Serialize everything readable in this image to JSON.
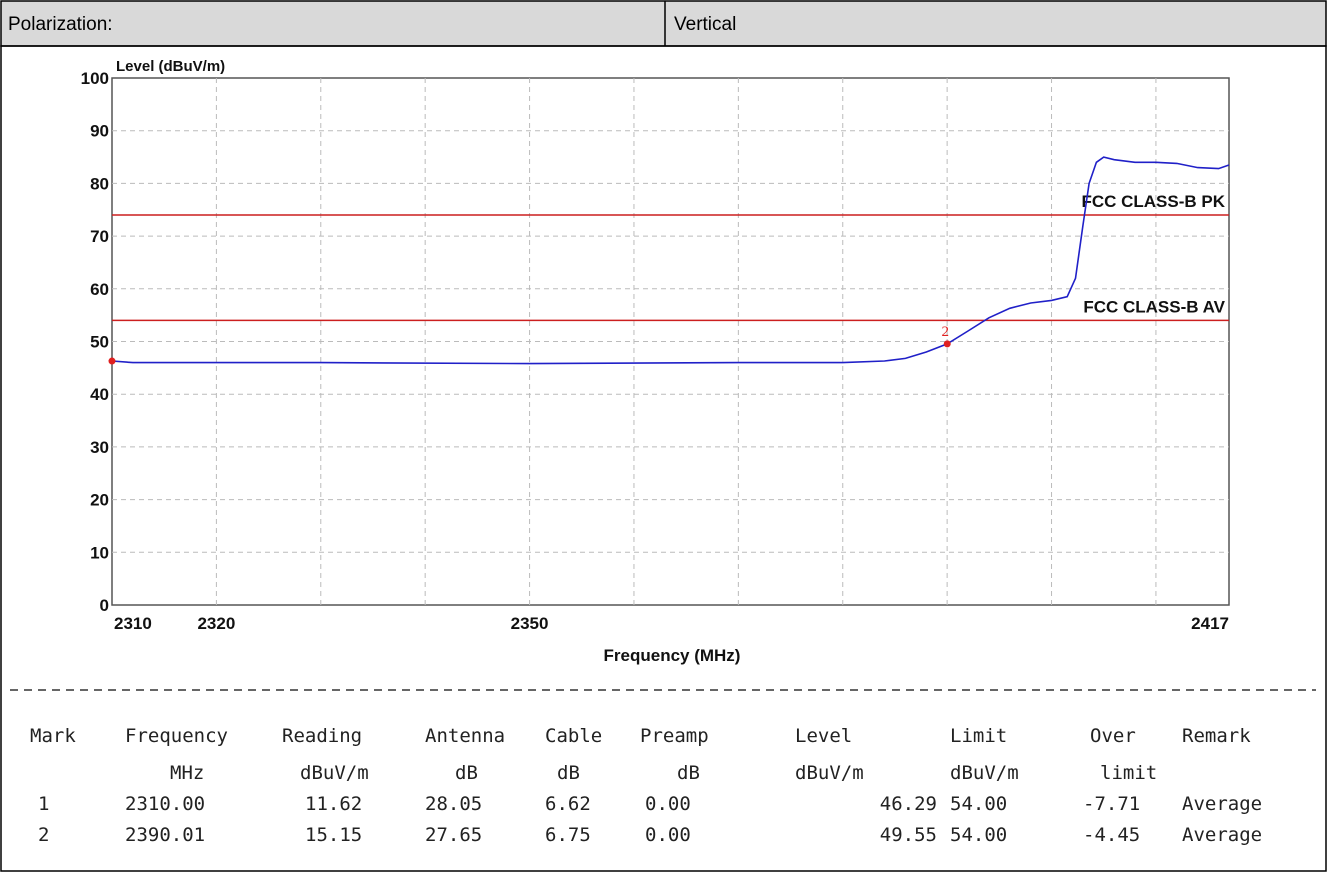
{
  "header": {
    "label": "Polarization:",
    "value": "Vertical"
  },
  "chart_data": {
    "type": "line",
    "ylabel": "Level (dBuV/m)",
    "xlabel": "Frequency (MHz)",
    "xlim": [
      2310,
      2417
    ],
    "xticks": [
      2310,
      2320,
      2350,
      2417
    ],
    "xgrid": [
      2320,
      2330,
      2340,
      2350,
      2360,
      2370,
      2380,
      2390,
      2400,
      2410
    ],
    "ylim": [
      0,
      100
    ],
    "yticks": [
      0,
      10,
      20,
      30,
      40,
      50,
      60,
      70,
      80,
      90,
      100
    ],
    "grid": true,
    "series": [
      {
        "color": "#2020c8",
        "x": [
          2310,
          2312,
          2330,
          2350,
          2370,
          2380,
          2384,
          2386,
          2388,
          2390.01,
          2392,
          2394,
          2396,
          2398,
          2400,
          2401.5,
          2402.3,
          2403,
          2403.6,
          2404.3,
          2405,
          2406,
          2408,
          2410,
          2412,
          2414,
          2416,
          2417
        ],
        "values": [
          46.3,
          46,
          46,
          45.8,
          46,
          46,
          46.3,
          46.8,
          48,
          49.55,
          52,
          54.5,
          56.3,
          57.3,
          57.8,
          58.5,
          62,
          72,
          80,
          84,
          85,
          84.5,
          84,
          84,
          83.8,
          83,
          82.8,
          83.5
        ]
      }
    ],
    "limits": [
      {
        "name": "FCC CLASS-B PK",
        "value": 74,
        "color": "#cc1f1f"
      },
      {
        "name": "FCC CLASS-B AV",
        "value": 54,
        "color": "#cc1f1f"
      }
    ],
    "markers": [
      {
        "x": 2310,
        "y": 46.29
      },
      {
        "label": "2",
        "x": 2390.01,
        "y": 49.55
      }
    ]
  },
  "table": {
    "headers": [
      [
        "Mark",
        "Frequency",
        "Reading",
        "Antenna",
        "Cable",
        "Preamp",
        "Level",
        "Limit",
        "Over",
        "Remark"
      ],
      [
        null,
        "MHz",
        "dBuV/m",
        "dB",
        "dB",
        "dB",
        "dBuV/m",
        "dBuV/m",
        "limit",
        null
      ]
    ],
    "rows": [
      [
        "1",
        "2310.00",
        "11.62",
        "28.05",
        "6.62",
        "0.00",
        "46.29",
        "54.00",
        "-7.71",
        "Average"
      ],
      [
        "2",
        "2390.01",
        "15.15",
        "27.65",
        "6.75",
        "0.00",
        "49.55",
        "54.00",
        "-4.45",
        "Average"
      ]
    ]
  }
}
